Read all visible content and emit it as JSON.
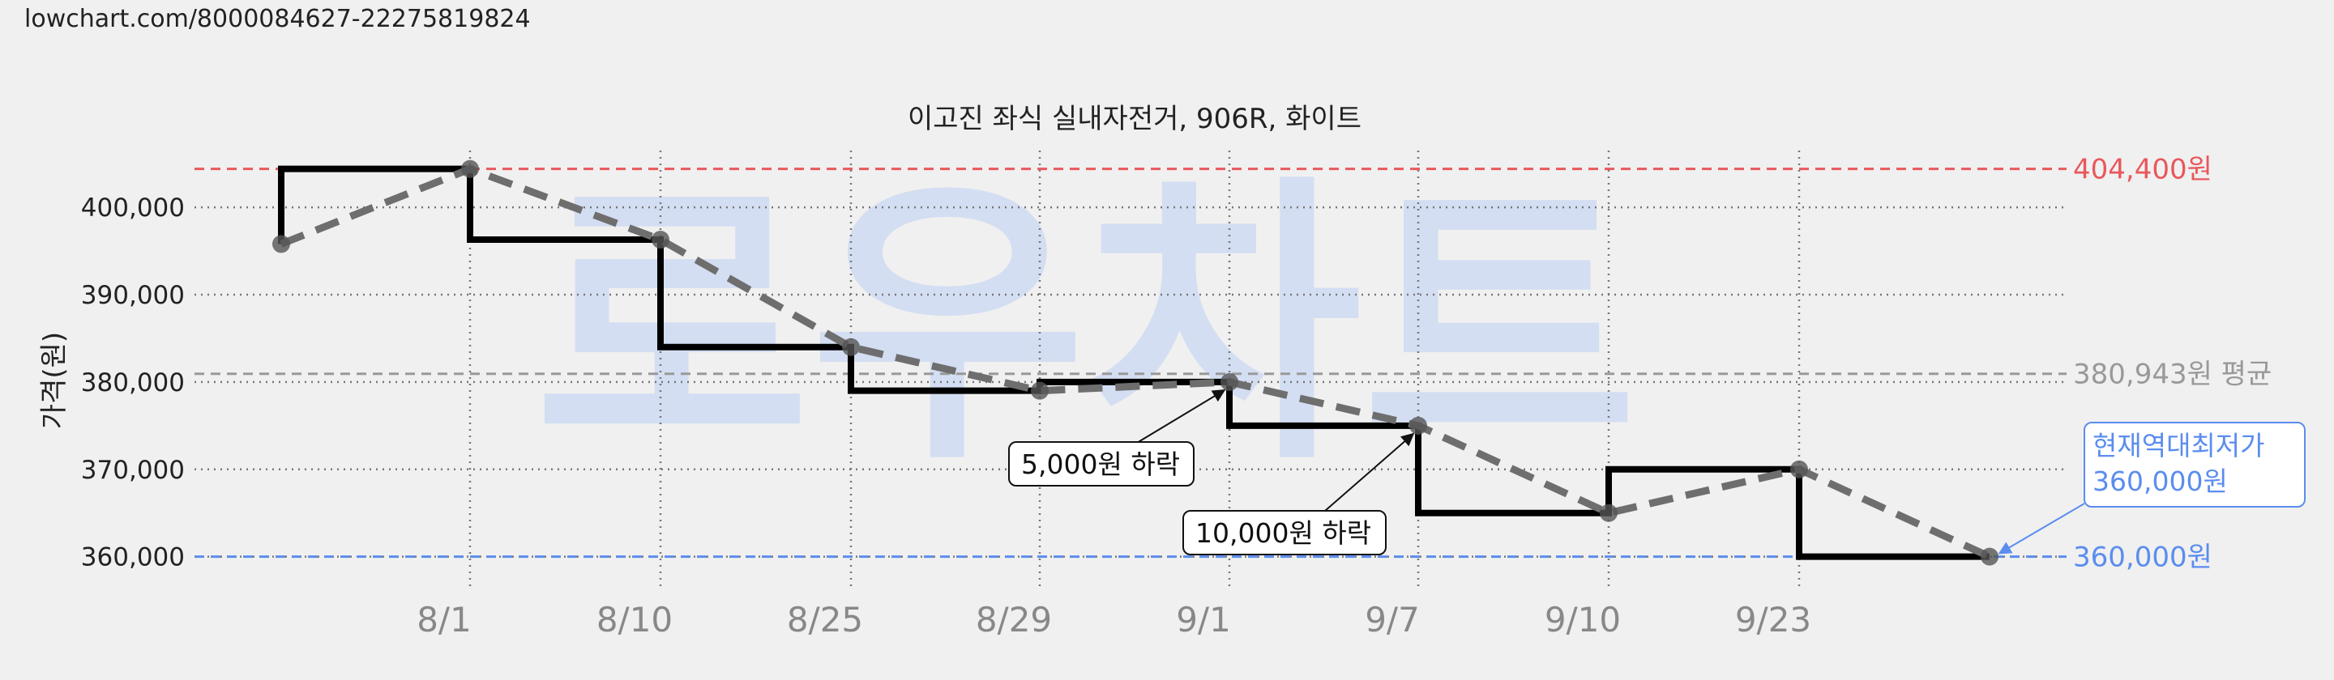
{
  "page": {
    "url": "lowchart.com/8000084627-22275819824"
  },
  "watermark": "로우차트",
  "chart_data": {
    "type": "line",
    "title": "이고진 좌식 실내자전거, 906R, 화이트",
    "ylabel": "가격(원)",
    "xlabel": "",
    "ylim": [
      357000,
      406500
    ],
    "y_ticks": [
      {
        "value": 360000,
        "label": "360,000"
      },
      {
        "value": 370000,
        "label": "370,000"
      },
      {
        "value": 380000,
        "label": "380,000"
      },
      {
        "value": 390000,
        "label": "390,000"
      },
      {
        "value": 400000,
        "label": "400,000"
      }
    ],
    "x_tick_labels": [
      "8/1",
      "8/10",
      "8/25",
      "8/29",
      "9/1",
      "9/7",
      "9/10",
      "9/23"
    ],
    "grid": true,
    "series": [
      {
        "style": "step-solid-black",
        "values": [
          395800,
          404400,
          396300,
          384000,
          379000,
          380000,
          375000,
          365000,
          370000,
          360000
        ]
      },
      {
        "style": "dashed-gray-with-markers",
        "values": [
          395800,
          404400,
          396300,
          384000,
          379000,
          380000,
          375000,
          365000,
          370000,
          360000
        ]
      }
    ],
    "reference_lines": [
      {
        "name": "max",
        "value": 404400,
        "label": "404,400원",
        "color": "#e8585c"
      },
      {
        "name": "average",
        "value": 380943,
        "label": "380,943원 평균",
        "color": "#999999"
      },
      {
        "name": "min",
        "value": 360000,
        "label": "360,000원",
        "color": "#5b8def"
      }
    ],
    "annotations": [
      {
        "text": "5,000원 하락",
        "point_index": 5
      },
      {
        "text": "10,000원 하락",
        "point_index": 6
      }
    ],
    "lowest_annotation": {
      "line1": "현재역대최저가",
      "line2": "360,000원",
      "point_index": 9
    }
  }
}
